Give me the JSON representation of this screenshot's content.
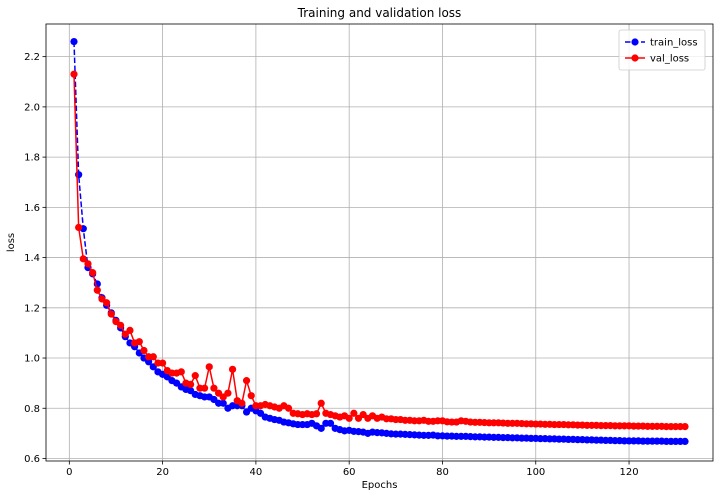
{
  "chart_data": {
    "type": "line",
    "title": "Training and validation loss",
    "xlabel": "Epochs",
    "ylabel": "loss",
    "xlim": [
      -5,
      138
    ],
    "ylim": [
      0.59,
      2.33
    ],
    "xticks": [
      0,
      20,
      40,
      60,
      80,
      100,
      120
    ],
    "yticks": [
      0.6,
      0.8,
      1.0,
      1.2,
      1.4,
      1.6,
      1.8,
      2.0,
      2.2
    ],
    "xtick_labels": [
      "0",
      "20",
      "40",
      "60",
      "80",
      "100",
      "120"
    ],
    "ytick_labels": [
      "0.6",
      "0.8",
      "1.0",
      "1.2",
      "1.4",
      "1.6",
      "1.8",
      "2.0",
      "2.2"
    ],
    "grid": true,
    "legend_position": "top-right",
    "series": [
      {
        "name": "train_loss",
        "color": "#0000ff",
        "linestyle": "dashed",
        "marker": "circle",
        "x": [
          1,
          2,
          3,
          4,
          5,
          6,
          7,
          8,
          9,
          10,
          11,
          12,
          13,
          14,
          15,
          16,
          17,
          18,
          19,
          20,
          21,
          22,
          23,
          24,
          25,
          26,
          27,
          28,
          29,
          30,
          31,
          32,
          33,
          34,
          35,
          36,
          37,
          38,
          39,
          40,
          41,
          42,
          43,
          44,
          45,
          46,
          47,
          48,
          49,
          50,
          51,
          52,
          53,
          54,
          55,
          56,
          57,
          58,
          59,
          60,
          61,
          62,
          63,
          64,
          65,
          66,
          67,
          68,
          69,
          70,
          71,
          72,
          73,
          74,
          75,
          76,
          77,
          78,
          79,
          80,
          81,
          82,
          83,
          84,
          85,
          86,
          87,
          88,
          89,
          90,
          91,
          92,
          93,
          94,
          95,
          96,
          97,
          98,
          99,
          100,
          101,
          102,
          103,
          104,
          105,
          106,
          107,
          108,
          109,
          110,
          111,
          112,
          113,
          114,
          115,
          116,
          117,
          118,
          119,
          120,
          121,
          122,
          123,
          124,
          125,
          126,
          127,
          128,
          129,
          130,
          131,
          132
        ],
        "y": [
          2.26,
          1.73,
          1.515,
          1.36,
          1.335,
          1.295,
          1.24,
          1.21,
          1.18,
          1.15,
          1.12,
          1.085,
          1.06,
          1.045,
          1.02,
          1.0,
          0.985,
          0.965,
          0.945,
          0.935,
          0.925,
          0.91,
          0.9,
          0.885,
          0.875,
          0.87,
          0.855,
          0.85,
          0.845,
          0.845,
          0.835,
          0.82,
          0.82,
          0.8,
          0.81,
          0.81,
          0.81,
          0.785,
          0.8,
          0.79,
          0.78,
          0.765,
          0.76,
          0.755,
          0.752,
          0.745,
          0.742,
          0.738,
          0.735,
          0.735,
          0.735,
          0.74,
          0.73,
          0.72,
          0.74,
          0.74,
          0.72,
          0.715,
          0.71,
          0.712,
          0.708,
          0.707,
          0.705,
          0.7,
          0.705,
          0.703,
          0.702,
          0.7,
          0.698,
          0.697,
          0.697,
          0.696,
          0.695,
          0.694,
          0.693,
          0.692,
          0.692,
          0.693,
          0.69,
          0.69,
          0.689,
          0.689,
          0.688,
          0.688,
          0.688,
          0.687,
          0.686,
          0.686,
          0.685,
          0.685,
          0.684,
          0.684,
          0.683,
          0.683,
          0.682,
          0.682,
          0.681,
          0.681,
          0.68,
          0.68,
          0.679,
          0.679,
          0.678,
          0.678,
          0.677,
          0.677,
          0.676,
          0.676,
          0.675,
          0.675,
          0.674,
          0.674,
          0.673,
          0.673,
          0.672,
          0.672,
          0.671,
          0.671,
          0.67,
          0.67,
          0.67,
          0.67,
          0.669,
          0.669,
          0.669,
          0.669,
          0.669,
          0.668,
          0.668,
          0.668,
          0.668,
          0.668
        ]
      },
      {
        "name": "val_loss",
        "color": "#ff0000",
        "linestyle": "solid",
        "marker": "circle",
        "x": [
          1,
          2,
          3,
          4,
          5,
          6,
          7,
          8,
          9,
          10,
          11,
          12,
          13,
          14,
          15,
          16,
          17,
          18,
          19,
          20,
          21,
          22,
          23,
          24,
          25,
          26,
          27,
          28,
          29,
          30,
          31,
          32,
          33,
          34,
          35,
          36,
          37,
          38,
          39,
          40,
          41,
          42,
          43,
          44,
          45,
          46,
          47,
          48,
          49,
          50,
          51,
          52,
          53,
          54,
          55,
          56,
          57,
          58,
          59,
          60,
          61,
          62,
          63,
          64,
          65,
          66,
          67,
          68,
          69,
          70,
          71,
          72,
          73,
          74,
          75,
          76,
          77,
          78,
          79,
          80,
          81,
          82,
          83,
          84,
          85,
          86,
          87,
          88,
          89,
          90,
          91,
          92,
          93,
          94,
          95,
          96,
          97,
          98,
          99,
          100,
          101,
          102,
          103,
          104,
          105,
          106,
          107,
          108,
          109,
          110,
          111,
          112,
          113,
          114,
          115,
          116,
          117,
          118,
          119,
          120,
          121,
          122,
          123,
          124,
          125,
          126,
          127,
          128,
          129,
          130,
          131,
          132
        ],
        "y": [
          2.13,
          1.52,
          1.395,
          1.375,
          1.34,
          1.27,
          1.235,
          1.22,
          1.175,
          1.145,
          1.13,
          1.095,
          1.11,
          1.06,
          1.065,
          1.03,
          1.005,
          1.005,
          0.98,
          0.98,
          0.95,
          0.94,
          0.94,
          0.945,
          0.9,
          0.895,
          0.93,
          0.88,
          0.88,
          0.965,
          0.88,
          0.86,
          0.845,
          0.86,
          0.955,
          0.83,
          0.82,
          0.91,
          0.85,
          0.81,
          0.81,
          0.815,
          0.81,
          0.805,
          0.8,
          0.81,
          0.8,
          0.78,
          0.778,
          0.775,
          0.778,
          0.775,
          0.778,
          0.82,
          0.78,
          0.775,
          0.77,
          0.765,
          0.77,
          0.76,
          0.78,
          0.76,
          0.775,
          0.76,
          0.77,
          0.76,
          0.765,
          0.758,
          0.758,
          0.755,
          0.755,
          0.752,
          0.752,
          0.75,
          0.75,
          0.752,
          0.748,
          0.748,
          0.75,
          0.75,
          0.746,
          0.745,
          0.745,
          0.75,
          0.748,
          0.745,
          0.744,
          0.744,
          0.743,
          0.742,
          0.742,
          0.742,
          0.741,
          0.74,
          0.74,
          0.74,
          0.739,
          0.738,
          0.738,
          0.737,
          0.737,
          0.736,
          0.736,
          0.735,
          0.735,
          0.735,
          0.734,
          0.734,
          0.733,
          0.733,
          0.732,
          0.732,
          0.732,
          0.731,
          0.731,
          0.731,
          0.73,
          0.73,
          0.73,
          0.73,
          0.729,
          0.729,
          0.729,
          0.728,
          0.728,
          0.728,
          0.728,
          0.727,
          0.727,
          0.727,
          0.727,
          0.727
        ]
      }
    ]
  }
}
